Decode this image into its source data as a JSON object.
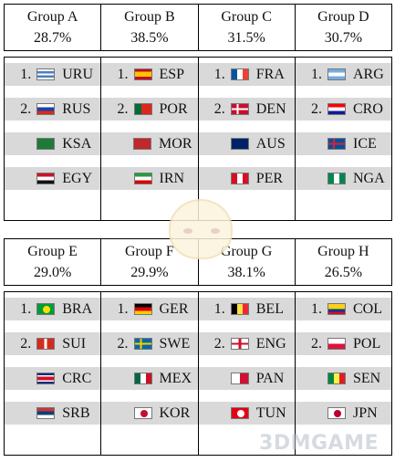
{
  "blocks": [
    {
      "groups": [
        {
          "name": "Group A",
          "pct": "28.7%",
          "teams": [
            {
              "rank": "1.",
              "code": "URU",
              "flag": "uru"
            },
            {
              "rank": "2.",
              "code": "RUS",
              "flag": "rus"
            },
            {
              "rank": "",
              "code": "KSA",
              "flag": "ksa"
            },
            {
              "rank": "",
              "code": "EGY",
              "flag": "egy"
            }
          ]
        },
        {
          "name": "Group B",
          "pct": "38.5%",
          "teams": [
            {
              "rank": "1.",
              "code": "ESP",
              "flag": "esp"
            },
            {
              "rank": "2.",
              "code": "POR",
              "flag": "por"
            },
            {
              "rank": "",
              "code": "MOR",
              "flag": "mor"
            },
            {
              "rank": "",
              "code": "IRN",
              "flag": "irn"
            }
          ]
        },
        {
          "name": "Group C",
          "pct": "31.5%",
          "teams": [
            {
              "rank": "1.",
              "code": "FRA",
              "flag": "fra"
            },
            {
              "rank": "2.",
              "code": "DEN",
              "flag": "den"
            },
            {
              "rank": "",
              "code": "AUS",
              "flag": "aus"
            },
            {
              "rank": "",
              "code": "PER",
              "flag": "per"
            }
          ]
        },
        {
          "name": "Group D",
          "pct": "30.7%",
          "teams": [
            {
              "rank": "1.",
              "code": "ARG",
              "flag": "arg"
            },
            {
              "rank": "2.",
              "code": "CRO",
              "flag": "cro"
            },
            {
              "rank": "",
              "code": "ICE",
              "flag": "ice"
            },
            {
              "rank": "",
              "code": "NGA",
              "flag": "nga"
            }
          ]
        }
      ]
    },
    {
      "groups": [
        {
          "name": "Group E",
          "pct": "29.0%",
          "teams": [
            {
              "rank": "1.",
              "code": "BRA",
              "flag": "bra"
            },
            {
              "rank": "2.",
              "code": "SUI",
              "flag": "sui"
            },
            {
              "rank": "",
              "code": "CRC",
              "flag": "crc"
            },
            {
              "rank": "",
              "code": "SRB",
              "flag": "srb"
            }
          ]
        },
        {
          "name": "Group F",
          "pct": "29.9%",
          "teams": [
            {
              "rank": "1.",
              "code": "GER",
              "flag": "ger"
            },
            {
              "rank": "2.",
              "code": "SWE",
              "flag": "swe"
            },
            {
              "rank": "",
              "code": "MEX",
              "flag": "mex"
            },
            {
              "rank": "",
              "code": "KOR",
              "flag": "kor"
            }
          ]
        },
        {
          "name": "Group G",
          "pct": "38.1%",
          "teams": [
            {
              "rank": "1.",
              "code": "BEL",
              "flag": "bel"
            },
            {
              "rank": "2.",
              "code": "ENG",
              "flag": "eng"
            },
            {
              "rank": "",
              "code": "PAN",
              "flag": "pan"
            },
            {
              "rank": "",
              "code": "TUN",
              "flag": "tun"
            }
          ]
        },
        {
          "name": "Group H",
          "pct": "26.5%",
          "teams": [
            {
              "rank": "1.",
              "code": "COL",
              "flag": "col"
            },
            {
              "rank": "2.",
              "code": "POL",
              "flag": "pol"
            },
            {
              "rank": "",
              "code": "SEN",
              "flag": "sen"
            },
            {
              "rank": "",
              "code": "JPN",
              "flag": "jpn"
            }
          ]
        }
      ]
    }
  ],
  "watermark": "3DMGAME",
  "colors": {
    "row_bg": "#d9d9d9",
    "border": "#000000"
  }
}
